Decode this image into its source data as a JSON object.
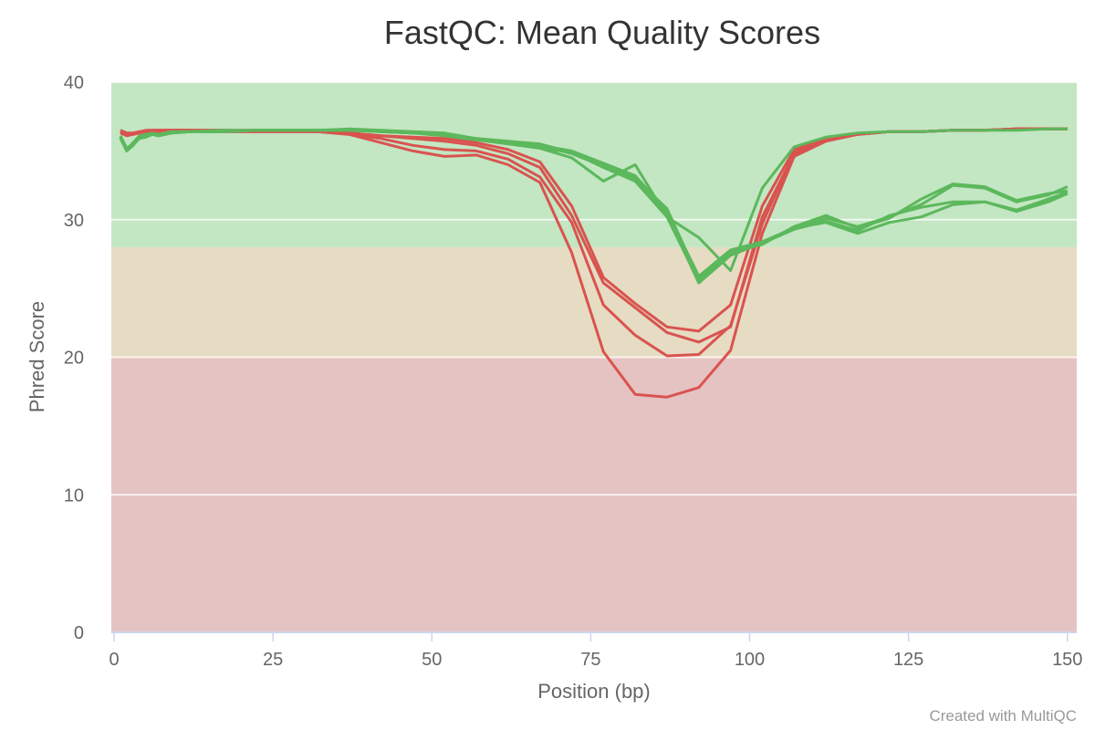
{
  "chart_data": {
    "type": "line",
    "title": "FastQC: Mean Quality Scores",
    "xlabel": "Position (bp)",
    "ylabel": "Phred Score",
    "xlim": [
      0,
      152
    ],
    "ylim": [
      0,
      40
    ],
    "xticks": [
      0,
      25,
      50,
      75,
      100,
      125,
      150
    ],
    "yticks": [
      0,
      10,
      20,
      30,
      40
    ],
    "grid": true,
    "credit": "Created with MultiQC",
    "bands": [
      {
        "from": 28,
        "to": 40,
        "color": "#c3e6c3"
      },
      {
        "from": 20,
        "to": 28,
        "color": "#e6dcc3"
      },
      {
        "from": 0,
        "to": 20,
        "color": "#e6c3c3"
      }
    ],
    "x": [
      1,
      2,
      3,
      4,
      5,
      6,
      7,
      8,
      9,
      12,
      17,
      22,
      27,
      32,
      37,
      42,
      47,
      52,
      57,
      62,
      67,
      72,
      77,
      82,
      87,
      92,
      97,
      102,
      107,
      112,
      117,
      122,
      127,
      132,
      137,
      142,
      147,
      150
    ],
    "series": [
      {
        "color": "#d9534f",
        "values": [
          36.4,
          36.2,
          36.3,
          36.4,
          36.4,
          36.4,
          36.4,
          36.5,
          36.5,
          36.5,
          36.4,
          36.4,
          36.4,
          36.4,
          36.3,
          36.1,
          35.9,
          35.7,
          35.4,
          34.8,
          33.8,
          30.3,
          25.4,
          23.6,
          21.8,
          21.1,
          22.2,
          30.2,
          34.8,
          35.8,
          36.2,
          36.4,
          36.4,
          36.5,
          36.5,
          36.6,
          36.6,
          36.6
        ]
      },
      {
        "color": "#d9534f",
        "values": [
          36.3,
          36.1,
          36.2,
          36.3,
          36.4,
          36.4,
          36.5,
          36.5,
          36.5,
          36.5,
          36.4,
          36.4,
          36.4,
          36.4,
          36.2,
          35.9,
          35.4,
          35.1,
          35.0,
          34.4,
          33.1,
          29.8,
          23.8,
          21.6,
          20.1,
          20.2,
          22.3,
          29.7,
          34.9,
          35.9,
          36.2,
          36.4,
          36.4,
          36.5,
          36.5,
          36.6,
          36.6,
          36.6
        ]
      },
      {
        "color": "#d9534f",
        "values": [
          36.5,
          36.3,
          36.3,
          36.4,
          36.4,
          36.5,
          36.5,
          36.5,
          36.5,
          36.5,
          36.5,
          36.4,
          36.4,
          36.4,
          36.2,
          35.6,
          35.0,
          34.6,
          34.7,
          34.0,
          32.7,
          27.6,
          20.4,
          17.3,
          17.1,
          17.8,
          20.5,
          29.0,
          34.6,
          35.7,
          36.2,
          36.4,
          36.4,
          36.5,
          36.5,
          36.6,
          36.6,
          36.6
        ]
      },
      {
        "color": "#d9534f",
        "values": [
          36.4,
          36.2,
          36.3,
          36.4,
          36.5,
          36.5,
          36.5,
          36.5,
          36.5,
          36.5,
          36.5,
          36.5,
          36.5,
          36.5,
          36.3,
          36.1,
          36.0,
          35.9,
          35.6,
          35.1,
          34.2,
          31.0,
          25.8,
          23.9,
          22.2,
          21.9,
          23.8,
          31.0,
          35.1,
          35.9,
          36.2,
          36.4,
          36.4,
          36.5,
          36.5,
          36.6,
          36.6,
          36.6
        ]
      },
      {
        "color": "#5cb85c",
        "values": [
          36.0,
          35.0,
          35.4,
          36.0,
          36.1,
          36.2,
          36.1,
          36.2,
          36.3,
          36.4,
          36.4,
          36.5,
          36.5,
          36.5,
          36.5,
          36.4,
          36.3,
          36.2,
          35.9,
          35.6,
          35.4,
          34.8,
          33.9,
          32.8,
          30.2,
          25.5,
          27.5,
          28.3,
          29.3,
          30.1,
          29.5,
          30.2,
          31.1,
          32.5,
          32.3,
          31.3,
          31.8,
          32.4
        ]
      },
      {
        "color": "#5cb85c",
        "values": [
          35.9,
          35.1,
          35.6,
          36.1,
          36.2,
          36.3,
          36.2,
          36.3,
          36.4,
          36.4,
          36.5,
          36.5,
          36.5,
          36.5,
          36.5,
          36.4,
          36.3,
          36.1,
          35.8,
          35.6,
          35.2,
          34.5,
          32.8,
          34.0,
          30.2,
          28.7,
          26.3,
          32.3,
          35.3,
          36.0,
          36.3,
          36.4,
          36.4,
          36.5,
          36.5,
          36.5,
          36.6,
          36.6
        ]
      },
      {
        "color": "#5cb85c",
        "values": [
          36.1,
          35.2,
          35.5,
          35.9,
          36.0,
          36.2,
          36.1,
          36.2,
          36.3,
          36.4,
          36.4,
          36.5,
          36.5,
          36.5,
          36.6,
          36.5,
          36.4,
          36.3,
          35.9,
          35.7,
          35.5,
          34.9,
          34.1,
          33.2,
          30.6,
          25.9,
          27.8,
          28.4,
          29.4,
          29.8,
          29.0,
          29.8,
          30.2,
          31.1,
          31.3,
          30.6,
          31.3,
          31.9
        ]
      },
      {
        "color": "#5cb85c",
        "values": [
          36.0,
          35.1,
          35.5,
          36.0,
          36.1,
          36.2,
          36.2,
          36.2,
          36.3,
          36.4,
          36.4,
          36.5,
          36.5,
          36.5,
          36.5,
          36.4,
          36.3,
          36.2,
          35.8,
          35.6,
          35.4,
          35.0,
          34.1,
          33.0,
          30.8,
          25.7,
          27.6,
          28.2,
          29.5,
          30.3,
          29.4,
          30.1,
          31.5,
          32.6,
          32.4,
          31.4,
          31.9,
          32.1
        ]
      },
      {
        "color": "#5cb85c",
        "values": [
          35.9,
          35.0,
          35.4,
          36.0,
          36.0,
          36.2,
          36.1,
          36.2,
          36.3,
          36.4,
          36.4,
          36.5,
          36.5,
          36.5,
          36.5,
          36.4,
          36.3,
          36.1,
          35.8,
          35.5,
          35.2,
          34.9,
          33.8,
          32.8,
          30.4,
          25.4,
          27.4,
          28.3,
          29.3,
          29.9,
          29.2,
          30.3,
          30.9,
          31.3,
          31.3,
          30.7,
          31.5,
          32.0
        ]
      }
    ]
  }
}
